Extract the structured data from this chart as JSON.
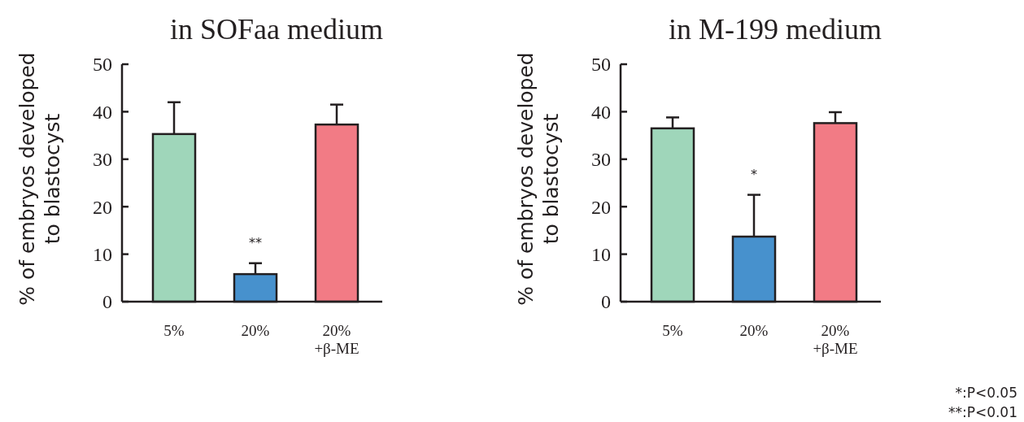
{
  "chart_data": [
    {
      "type": "bar",
      "title": "in SOFaa medium",
      "ylabel": "% of embryos developed\nto blastocyst",
      "categories": [
        "5%",
        "20%",
        "20%\n+β-ME"
      ],
      "values": [
        35.3,
        5.8,
        37.3
      ],
      "colors": [
        "#9fd6ba",
        "#4791cd",
        "#f27b85"
      ],
      "errors": [
        [
          35.3,
          42.0
        ],
        [
          5.8,
          8.1
        ],
        [
          37.3,
          41.5
        ]
      ],
      "ylim": [
        0,
        50
      ],
      "yticks": [
        0,
        10,
        20,
        30,
        40,
        50
      ],
      "annotations": [
        "**"
      ]
    },
    {
      "type": "bar",
      "title": "in M-199 medium",
      "ylabel": "% of embryos developed\nto blastocyst",
      "categories": [
        "5%",
        "20%",
        "20%\n+β-ME"
      ],
      "values": [
        36.5,
        13.7,
        37.6
      ],
      "colors": [
        "#9fd6ba",
        "#4791cd",
        "#f27b85"
      ],
      "errors": [
        [
          36.5,
          38.8
        ],
        [
          13.7,
          22.5
        ],
        [
          37.6,
          39.9
        ]
      ],
      "ylim": [
        0,
        50
      ],
      "yticks": [
        0,
        10,
        20,
        30,
        40,
        50
      ],
      "annotations": [
        "*",
        "*:P<0.05",
        "**:P<0.01"
      ]
    }
  ]
}
